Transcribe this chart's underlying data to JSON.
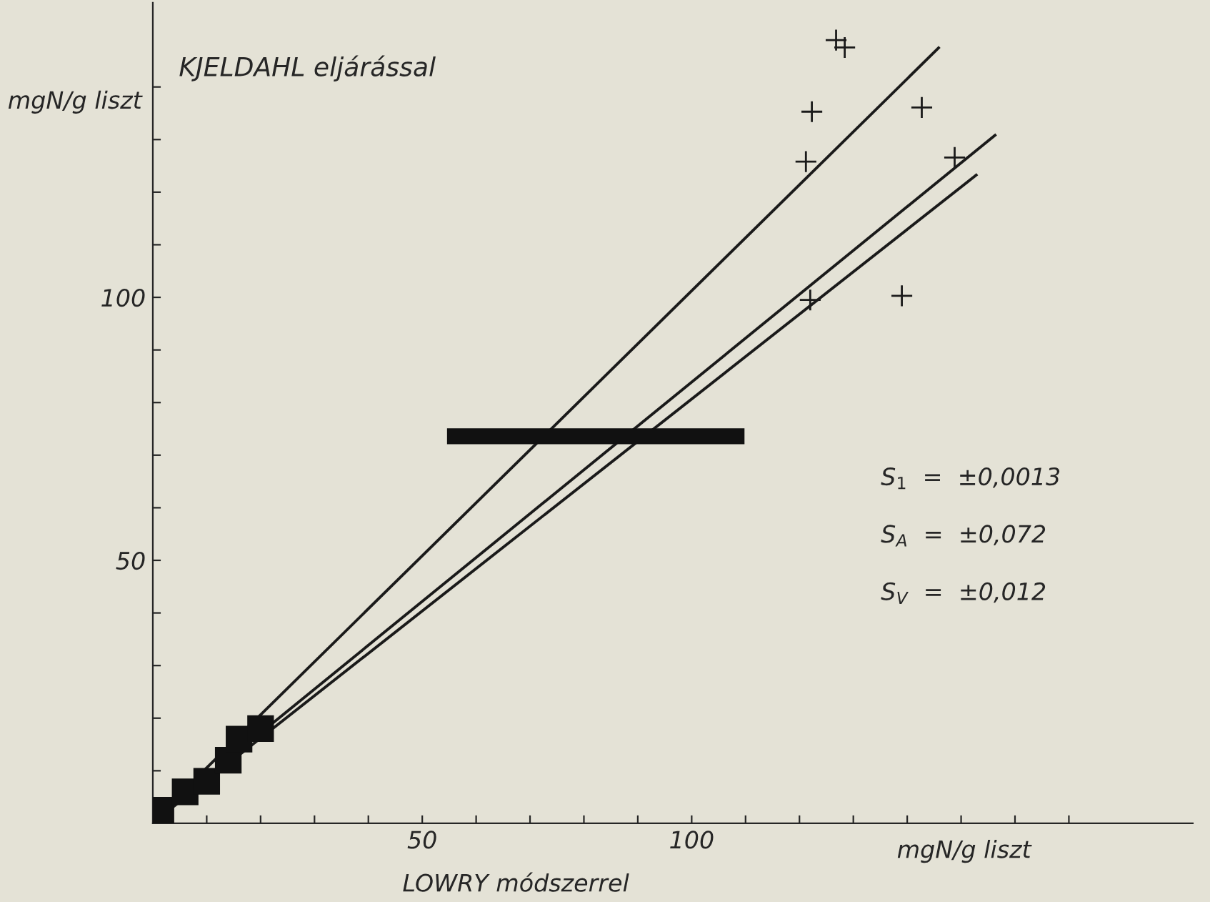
{
  "chart_data": {
    "type": "scatter",
    "ylabel": "mgN/g liszt",
    "xlabel": "mgN/g liszt",
    "annotations": [
      "KJELDAHL eljárással",
      "LOWRY módszerrel",
      "S$_{1}$  =  ±0,0013",
      "S$_{A}$  =  ±0,072",
      "S$_{V}$  =  ±0,012"
    ],
    "xlim": [
      0,
      193
    ],
    "ylim": [
      0,
      156
    ],
    "xticks": [
      {
        "value": 10,
        "label": null
      },
      {
        "value": 20,
        "label": null
      },
      {
        "value": 30,
        "label": null
      },
      {
        "value": 40,
        "label": null
      },
      50,
      {
        "value": 60,
        "label": null
      },
      {
        "value": 70,
        "label": null
      },
      {
        "value": 80,
        "label": null
      },
      {
        "value": 90,
        "label": null
      },
      100,
      {
        "value": 110,
        "label": null
      },
      {
        "value": 120,
        "label": null
      },
      {
        "value": 130,
        "label": null
      },
      {
        "value": 140,
        "label": null
      },
      {
        "value": 150,
        "label": null
      },
      {
        "value": 160,
        "label": null
      },
      {
        "value": 170,
        "label": null
      }
    ],
    "yticks": [
      {
        "value": 10,
        "label": null
      },
      {
        "value": 20,
        "label": null
      },
      {
        "value": 30,
        "label": null
      },
      {
        "value": 40,
        "label": null
      },
      50,
      {
        "value": 60,
        "label": null
      },
      {
        "value": 70,
        "label": null
      },
      {
        "value": 80,
        "label": null
      },
      {
        "value": 90,
        "label": null
      },
      100,
      {
        "value": 110,
        "label": null
      },
      {
        "value": 120,
        "label": null
      },
      {
        "value": 130,
        "label": null
      },
      {
        "value": 140,
        "label": null
      }
    ],
    "grid": false,
    "legend": false,
    "series": [
      {
        "marker": "cross",
        "color": "#1a1a1a",
        "x": [
          126.8,
          128.4,
          122.3,
          142.7,
          121.2,
          148.8,
          122.0,
          139.0
        ],
        "values": [
          148.9,
          147.5,
          135.3,
          136.1,
          125.8,
          126.6,
          99.5,
          100.3
        ]
      },
      {
        "marker": "square",
        "color": "#111111",
        "x": [
          1.5,
          6,
          10,
          14,
          16,
          20
        ],
        "values": [
          2.5,
          6,
          8,
          12,
          16,
          18
        ]
      },
      {
        "type": "line",
        "line_style": "solid",
        "color": "#1a1a1a",
        "x": [
          2,
          146
        ],
        "values": [
          2.5,
          147.6
        ]
      },
      {
        "type": "line",
        "line_style": "solid",
        "color": "#1a1a1a",
        "x": [
          3,
          156.5
        ],
        "values": [
          3,
          131
        ]
      },
      {
        "type": "line",
        "line_style": "solid",
        "color": "#1a1a1a",
        "x": [
          3,
          153
        ],
        "values": [
          2.5,
          123.4
        ]
      },
      {
        "type": "line",
        "line_style": "solid",
        "color": "#111111",
        "x": [
          54.6,
          109.8
        ],
        "values": [
          73.6,
          73.6
        ]
      }
    ]
  }
}
